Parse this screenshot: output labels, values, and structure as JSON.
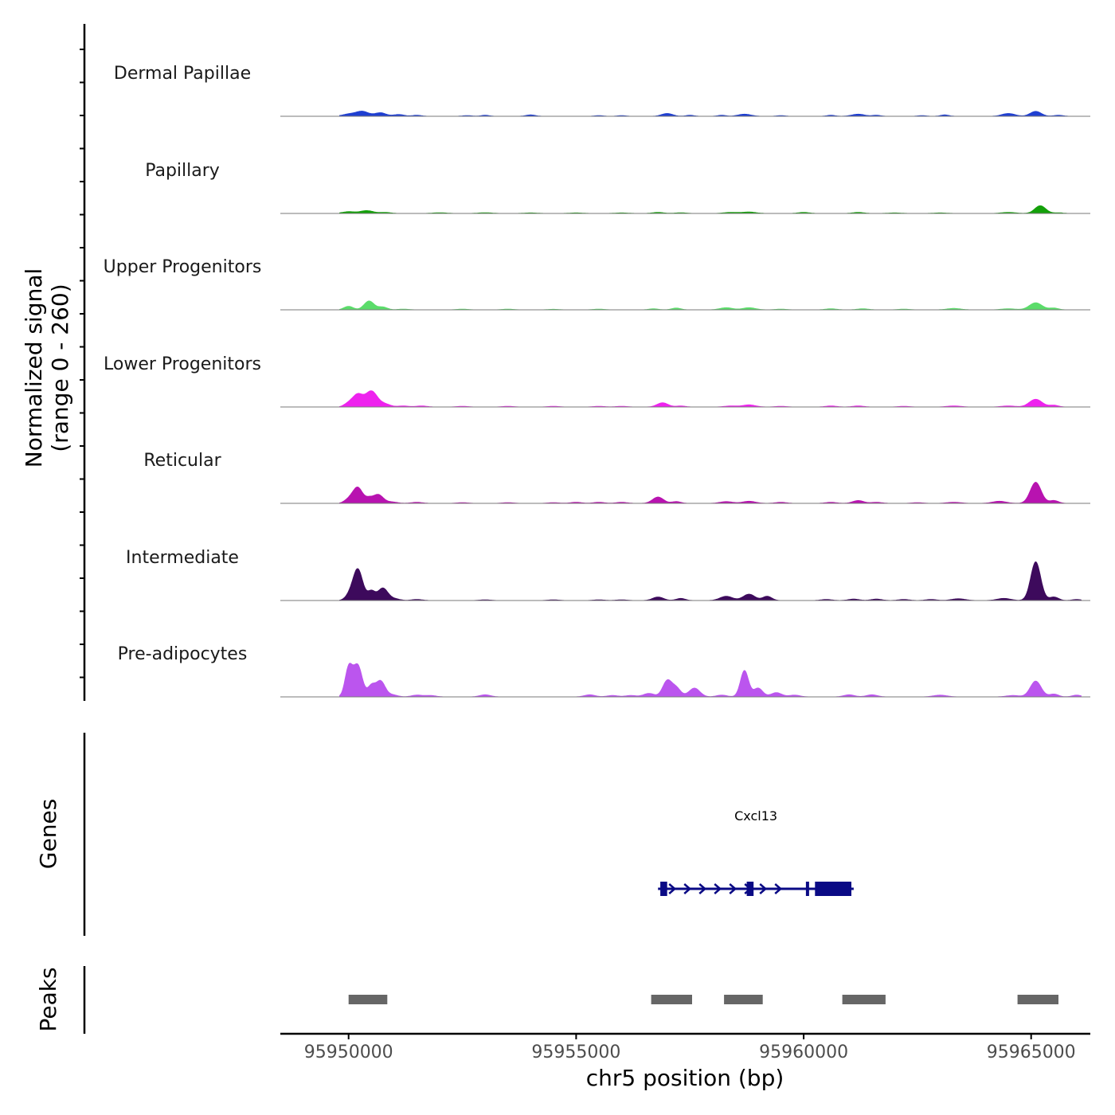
{
  "chart_data": {
    "type": "area",
    "title": "",
    "xlabel": "chr5 position (bp)",
    "ylabel_line1": "Normalized signal",
    "ylabel_line2": "(range 0 - 260)",
    "ylim": [
      0,
      260
    ],
    "xlim": [
      95948500,
      95966300
    ],
    "x_ticks": [
      95950000,
      95955000,
      95960000,
      95965000
    ],
    "x_tick_labels": [
      "95950000",
      "95955000",
      "95960000",
      "95965000"
    ],
    "genes_panel_label": "Genes",
    "peaks_panel_label": "Peaks",
    "tracks": [
      {
        "name": "Dermal Papillae",
        "color": "#1f3fd1",
        "peaks": [
          [
            95950000,
            6,
            140
          ],
          [
            95950300,
            14,
            140
          ],
          [
            95950700,
            10,
            120
          ],
          [
            95951100,
            5,
            120
          ],
          [
            95951500,
            3,
            100
          ],
          [
            95952600,
            2,
            100
          ],
          [
            95953000,
            3,
            90
          ],
          [
            95954000,
            4,
            100
          ],
          [
            95955500,
            2,
            90
          ],
          [
            95956000,
            2,
            90
          ],
          [
            95957000,
            8,
            120
          ],
          [
            95957500,
            3,
            90
          ],
          [
            95958200,
            3,
            90
          ],
          [
            95958700,
            6,
            140
          ],
          [
            95959500,
            2,
            90
          ],
          [
            95960600,
            3,
            90
          ],
          [
            95961200,
            6,
            140
          ],
          [
            95961600,
            3,
            90
          ],
          [
            95962600,
            2,
            90
          ],
          [
            95963100,
            4,
            90
          ],
          [
            95964500,
            8,
            140
          ],
          [
            95965100,
            14,
            120
          ],
          [
            95965600,
            3,
            100
          ]
        ]
      },
      {
        "name": "Papillary",
        "color": "#14a00a",
        "peaks": [
          [
            95950000,
            5,
            140
          ],
          [
            95950400,
            8,
            140
          ],
          [
            95950800,
            3,
            120
          ],
          [
            95952000,
            2,
            150
          ],
          [
            95953000,
            2,
            150
          ],
          [
            95954000,
            1.5,
            150
          ],
          [
            95955000,
            1.5,
            150
          ],
          [
            95956000,
            1.5,
            150
          ],
          [
            95956800,
            3,
            120
          ],
          [
            95957300,
            2,
            120
          ],
          [
            95958400,
            3,
            150
          ],
          [
            95958800,
            4,
            150
          ],
          [
            95960000,
            3,
            120
          ],
          [
            95961200,
            3,
            120
          ],
          [
            95962000,
            1.5,
            150
          ],
          [
            95963000,
            1.5,
            150
          ],
          [
            95964500,
            3,
            150
          ],
          [
            95965200,
            22,
            120
          ],
          [
            95965600,
            2,
            100
          ]
        ]
      },
      {
        "name": "Upper Progenitors",
        "color": "#5bdc6a",
        "peaks": [
          [
            95950000,
            10,
            100
          ],
          [
            95950450,
            25,
            110
          ],
          [
            95950750,
            8,
            100
          ],
          [
            95951200,
            2,
            120
          ],
          [
            95952500,
            2,
            120
          ],
          [
            95953500,
            2,
            120
          ],
          [
            95954500,
            1.5,
            120
          ],
          [
            95955500,
            2,
            120
          ],
          [
            95956700,
            3,
            100
          ],
          [
            95957200,
            5,
            100
          ],
          [
            95958300,
            6,
            140
          ],
          [
            95958800,
            6,
            140
          ],
          [
            95959500,
            2,
            120
          ],
          [
            95960600,
            3,
            120
          ],
          [
            95961300,
            3,
            120
          ],
          [
            95962200,
            2,
            120
          ],
          [
            95963300,
            4,
            150
          ],
          [
            95964500,
            3,
            150
          ],
          [
            95965100,
            20,
            140
          ],
          [
            95965500,
            5,
            100
          ]
        ]
      },
      {
        "name": "Lower Progenitors",
        "color": "#ee22ee",
        "peaks": [
          [
            95950000,
            10,
            100
          ],
          [
            95950200,
            34,
            110
          ],
          [
            95950500,
            45,
            130
          ],
          [
            95950800,
            8,
            120
          ],
          [
            95951200,
            3,
            120
          ],
          [
            95951600,
            3,
            120
          ],
          [
            95952500,
            2,
            120
          ],
          [
            95953500,
            2,
            120
          ],
          [
            95954500,
            2,
            120
          ],
          [
            95955500,
            2,
            120
          ],
          [
            95956000,
            2,
            120
          ],
          [
            95956900,
            12,
            120
          ],
          [
            95957300,
            3,
            100
          ],
          [
            95958400,
            3,
            140
          ],
          [
            95958800,
            6,
            140
          ],
          [
            95959500,
            2,
            120
          ],
          [
            95960600,
            3,
            120
          ],
          [
            95961200,
            3,
            120
          ],
          [
            95962200,
            2,
            120
          ],
          [
            95963300,
            3,
            150
          ],
          [
            95964500,
            3,
            150
          ],
          [
            95965100,
            22,
            140
          ],
          [
            95965500,
            5,
            100
          ]
        ]
      },
      {
        "name": "Reticular",
        "color": "#b813b0",
        "peaks": [
          [
            95950000,
            10,
            100
          ],
          [
            95950200,
            45,
            110
          ],
          [
            95950450,
            12,
            80
          ],
          [
            95950650,
            25,
            110
          ],
          [
            95950950,
            4,
            120
          ],
          [
            95951500,
            3,
            120
          ],
          [
            95952500,
            2,
            120
          ],
          [
            95953500,
            2,
            120
          ],
          [
            95954500,
            2,
            120
          ],
          [
            95955000,
            3,
            120
          ],
          [
            95955500,
            3,
            120
          ],
          [
            95956000,
            3,
            120
          ],
          [
            95956800,
            18,
            120
          ],
          [
            95957200,
            5,
            100
          ],
          [
            95958300,
            5,
            140
          ],
          [
            95958800,
            6,
            140
          ],
          [
            95959500,
            3,
            120
          ],
          [
            95960600,
            3,
            120
          ],
          [
            95961200,
            8,
            120
          ],
          [
            95961600,
            3,
            120
          ],
          [
            95962500,
            2,
            120
          ],
          [
            95963300,
            3,
            150
          ],
          [
            95964300,
            6,
            150
          ],
          [
            95965100,
            60,
            120
          ],
          [
            95965500,
            8,
            100
          ]
        ]
      },
      {
        "name": "Intermediate",
        "color": "#3d0a5c",
        "peaks": [
          [
            95950000,
            10,
            90
          ],
          [
            95950200,
            90,
            110
          ],
          [
            95950500,
            25,
            80
          ],
          [
            95950750,
            35,
            110
          ],
          [
            95951000,
            5,
            120
          ],
          [
            95951500,
            3,
            120
          ],
          [
            95953000,
            2,
            120
          ],
          [
            95954500,
            2,
            120
          ],
          [
            95955500,
            2,
            120
          ],
          [
            95956000,
            2,
            120
          ],
          [
            95956800,
            10,
            120
          ],
          [
            95957300,
            6,
            100
          ],
          [
            95958300,
            12,
            140
          ],
          [
            95958800,
            18,
            130
          ],
          [
            95959200,
            12,
            100
          ],
          [
            95960500,
            3,
            120
          ],
          [
            95961100,
            4,
            120
          ],
          [
            95961600,
            4,
            120
          ],
          [
            95962200,
            3,
            120
          ],
          [
            95962800,
            3,
            120
          ],
          [
            95963400,
            5,
            150
          ],
          [
            95964400,
            6,
            150
          ],
          [
            95965100,
            110,
            110
          ],
          [
            95965500,
            10,
            100
          ],
          [
            95966000,
            3,
            100
          ]
        ]
      },
      {
        "name": "Pre-adipocytes",
        "color": "#bb55ee",
        "peaks": [
          [
            95950000,
            80,
            80
          ],
          [
            95950200,
            90,
            100
          ],
          [
            95950500,
            30,
            80
          ],
          [
            95950700,
            45,
            100
          ],
          [
            95950950,
            6,
            120
          ],
          [
            95951500,
            5,
            120
          ],
          [
            95951800,
            4,
            120
          ],
          [
            95953000,
            6,
            120
          ],
          [
            95955300,
            6,
            120
          ],
          [
            95955800,
            4,
            120
          ],
          [
            95956200,
            4,
            120
          ],
          [
            95956600,
            10,
            120
          ],
          [
            95957000,
            45,
            100
          ],
          [
            95957200,
            25,
            100
          ],
          [
            95957600,
            25,
            120
          ],
          [
            95958200,
            5,
            120
          ],
          [
            95958700,
            75,
            90
          ],
          [
            95959000,
            25,
            100
          ],
          [
            95959400,
            12,
            120
          ],
          [
            95959800,
            5,
            120
          ],
          [
            95961000,
            6,
            120
          ],
          [
            95961500,
            6,
            120
          ],
          [
            95963000,
            5,
            150
          ],
          [
            95964600,
            4,
            150
          ],
          [
            95965100,
            45,
            120
          ],
          [
            95965500,
            8,
            100
          ],
          [
            95966000,
            5,
            100
          ]
        ]
      }
    ],
    "genes": [
      {
        "name": "Cxcl13",
        "strand": "+",
        "start": 95956800,
        "end": 95961100,
        "exons": [
          [
            95956850,
            95957000
          ],
          [
            95958750,
            95958900
          ],
          [
            95960050,
            95960100
          ],
          [
            95960250,
            95961050
          ]
        ],
        "color": "#0a0a85"
      }
    ],
    "peak_regions": [
      [
        95950000,
        95950850
      ],
      [
        95956650,
        95957550
      ],
      [
        95958250,
        95959100
      ],
      [
        95960850,
        95961800
      ],
      [
        95964700,
        95965600
      ]
    ],
    "peak_region_color": "#666666"
  }
}
